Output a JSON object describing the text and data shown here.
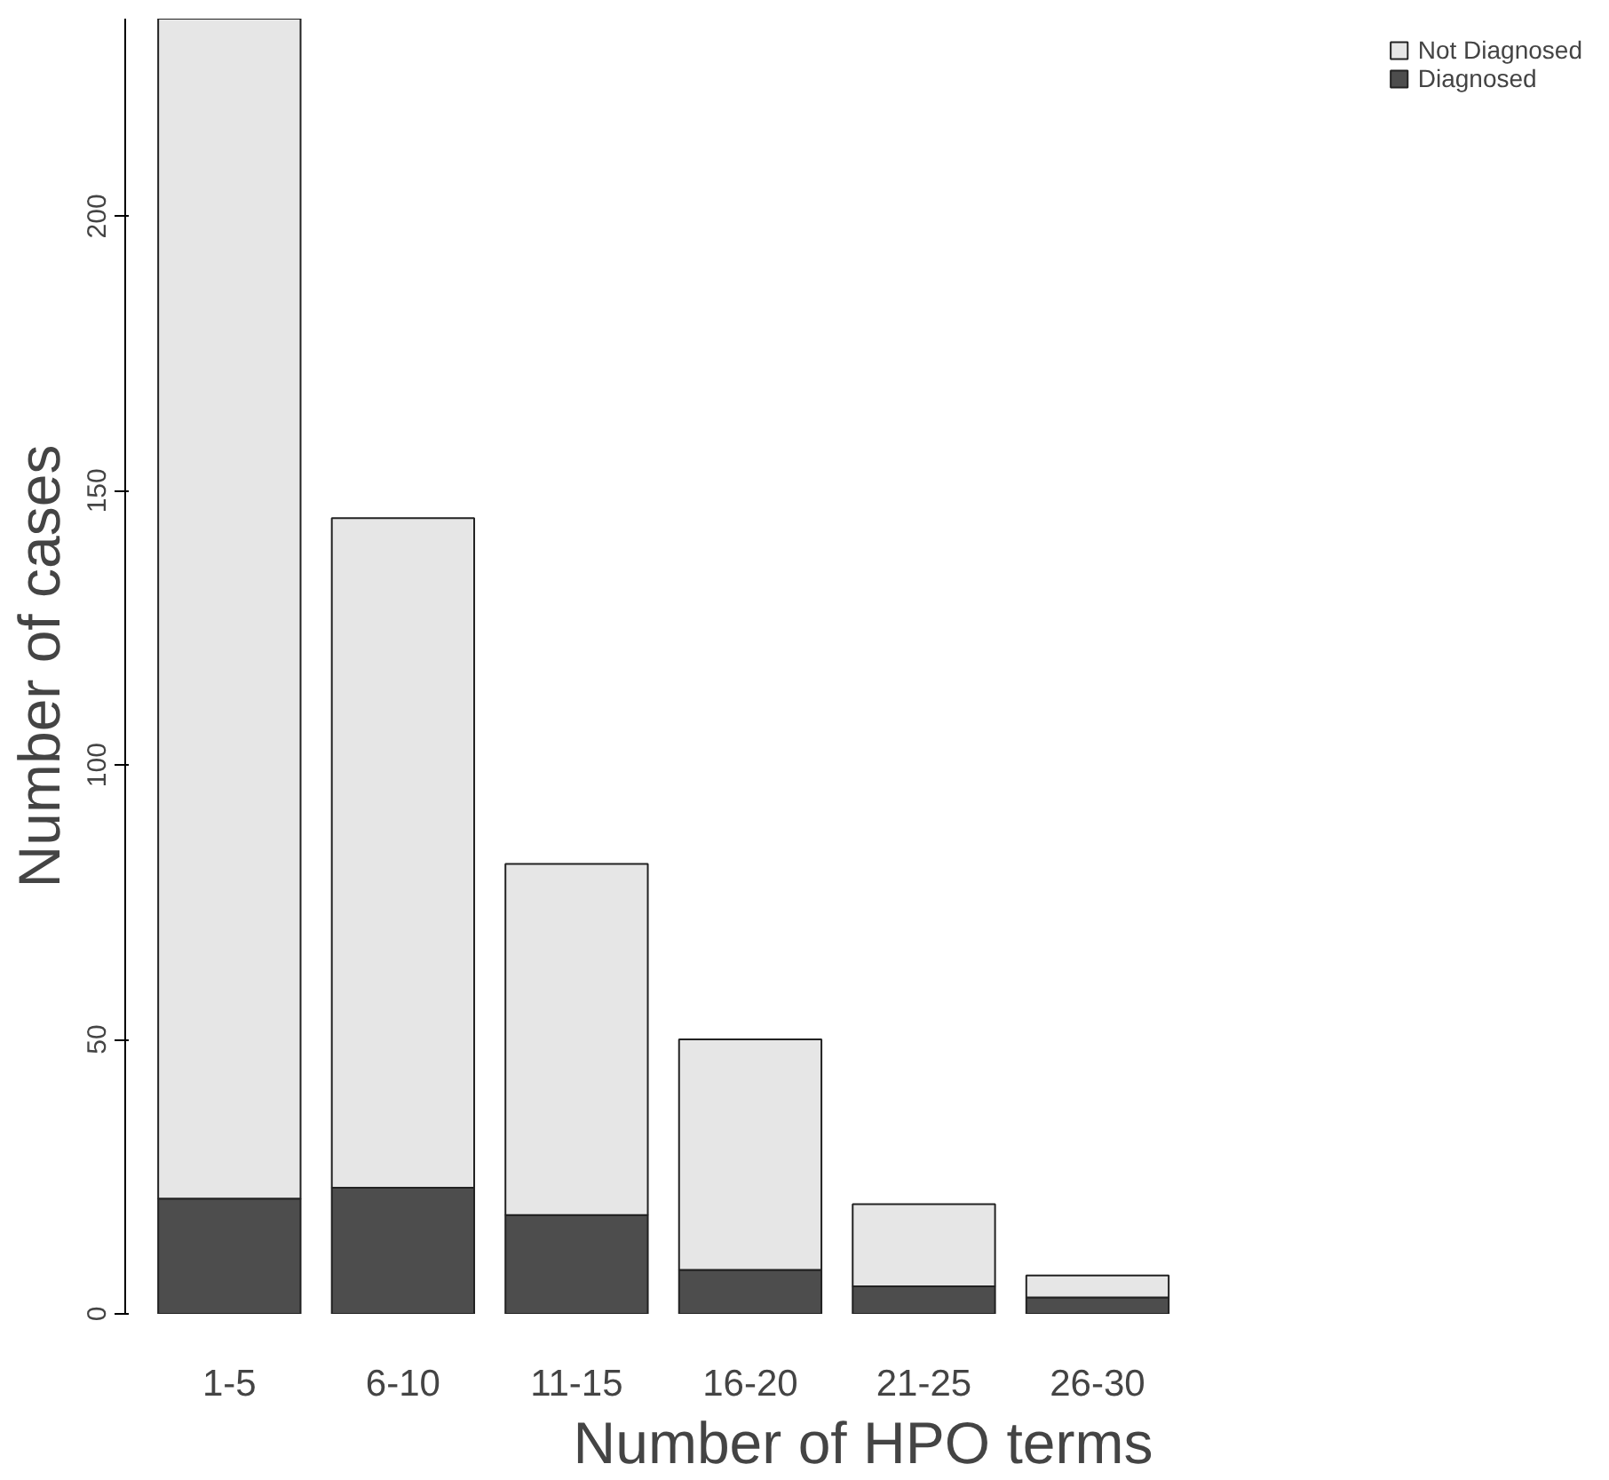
{
  "chart_data": {
    "type": "bar",
    "xlabel": "Number of HPO terms",
    "ylabel": "Number of cases",
    "categories": [
      "1-5",
      "6-10",
      "11-15",
      "16-20",
      "21-25",
      "26-30"
    ],
    "stacked": true,
    "series": [
      {
        "name": "Diagnosed",
        "color": "#4d4d4d",
        "values": [
          21,
          23,
          18,
          8,
          5,
          3
        ]
      },
      {
        "name": "Not Diagnosed",
        "color": "#e6e6e6",
        "values": [
          215,
          122,
          64,
          42,
          15,
          4
        ]
      }
    ],
    "ylim": [
      0,
      236
    ],
    "yticks": [
      0,
      50,
      100,
      150,
      200
    ],
    "grid": false,
    "legend": "top right"
  }
}
